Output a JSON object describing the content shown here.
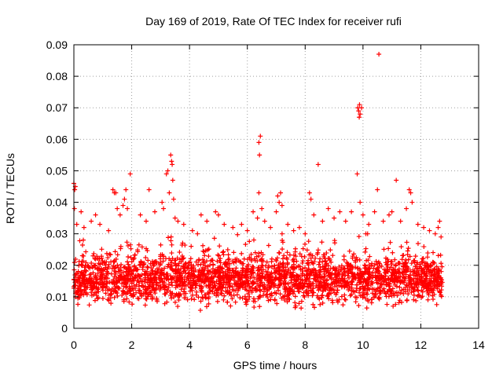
{
  "chart_data": {
    "type": "scatter",
    "title": "Day 169 of 2019, Rate Of TEC Index for receiver rufi",
    "xlabel": "GPS time / hours",
    "ylabel": "ROTI / TECUs",
    "xlim": [
      0,
      14
    ],
    "ylim": [
      0,
      0.09
    ],
    "xticks": [
      0,
      2,
      4,
      6,
      8,
      10,
      12,
      14
    ],
    "xtick_labels": [
      "0",
      "2",
      "4",
      "6",
      "8",
      "10",
      "12",
      "14"
    ],
    "yticks": [
      0,
      0.01,
      0.02,
      0.03,
      0.04,
      0.05,
      0.06,
      0.07,
      0.08,
      0.09
    ],
    "ytick_labels": [
      "0",
      "0.01",
      "0.02",
      "0.03",
      "0.04",
      "0.05",
      "0.06",
      "0.07",
      "0.08",
      "0.09"
    ],
    "grid": true,
    "marker": "+",
    "color": "#ff0000",
    "series": [
      {
        "name": "ROTI",
        "points": [
          [
            0.0,
            0.046
          ],
          [
            0.03,
            0.044
          ],
          [
            0.05,
            0.045
          ],
          [
            0.02,
            0.038
          ],
          [
            0.1,
            0.033
          ],
          [
            0.25,
            0.037
          ],
          [
            0.35,
            0.032
          ],
          [
            0.6,
            0.034
          ],
          [
            0.75,
            0.036
          ],
          [
            0.9,
            0.033
          ],
          [
            1.2,
            0.031
          ],
          [
            1.35,
            0.044
          ],
          [
            1.4,
            0.043
          ],
          [
            1.45,
            0.043
          ],
          [
            1.5,
            0.038
          ],
          [
            1.6,
            0.036
          ],
          [
            1.7,
            0.039
          ],
          [
            1.75,
            0.041
          ],
          [
            1.8,
            0.044
          ],
          [
            1.85,
            0.038
          ],
          [
            1.95,
            0.049
          ],
          [
            2.3,
            0.036
          ],
          [
            2.5,
            0.034
          ],
          [
            2.6,
            0.044
          ],
          [
            2.8,
            0.037
          ],
          [
            3.05,
            0.04
          ],
          [
            3.1,
            0.038
          ],
          [
            3.2,
            0.049
          ],
          [
            3.25,
            0.05
          ],
          [
            3.3,
            0.043
          ],
          [
            3.35,
            0.055
          ],
          [
            3.38,
            0.053
          ],
          [
            3.4,
            0.052
          ],
          [
            3.42,
            0.047
          ],
          [
            3.45,
            0.041
          ],
          [
            3.5,
            0.035
          ],
          [
            3.6,
            0.034
          ],
          [
            3.8,
            0.033
          ],
          [
            4.1,
            0.031
          ],
          [
            4.4,
            0.036
          ],
          [
            4.6,
            0.034
          ],
          [
            4.9,
            0.037
          ],
          [
            5.0,
            0.036
          ],
          [
            5.2,
            0.033
          ],
          [
            5.5,
            0.032
          ],
          [
            5.8,
            0.033
          ],
          [
            6.0,
            0.031
          ],
          [
            6.2,
            0.037
          ],
          [
            6.35,
            0.035
          ],
          [
            6.4,
            0.059
          ],
          [
            6.45,
            0.061
          ],
          [
            6.42,
            0.055
          ],
          [
            6.4,
            0.043
          ],
          [
            6.5,
            0.038
          ],
          [
            6.6,
            0.034
          ],
          [
            6.8,
            0.032
          ],
          [
            7.0,
            0.037
          ],
          [
            7.05,
            0.042
          ],
          [
            7.1,
            0.04
          ],
          [
            7.15,
            0.043
          ],
          [
            7.2,
            0.039
          ],
          [
            7.4,
            0.033
          ],
          [
            7.6,
            0.031
          ],
          [
            7.8,
            0.032
          ],
          [
            8.0,
            0.03
          ],
          [
            8.15,
            0.043
          ],
          [
            8.2,
            0.041
          ],
          [
            8.3,
            0.036
          ],
          [
            8.45,
            0.052
          ],
          [
            8.6,
            0.034
          ],
          [
            8.8,
            0.038
          ],
          [
            9.0,
            0.035
          ],
          [
            9.2,
            0.037
          ],
          [
            9.4,
            0.034
          ],
          [
            9.6,
            0.037
          ],
          [
            9.8,
            0.049
          ],
          [
            9.82,
            0.07
          ],
          [
            9.85,
            0.069
          ],
          [
            9.88,
            0.071
          ],
          [
            9.9,
            0.068
          ],
          [
            9.95,
            0.07
          ],
          [
            9.87,
            0.067
          ],
          [
            9.9,
            0.04
          ],
          [
            10.0,
            0.036
          ],
          [
            10.2,
            0.033
          ],
          [
            10.4,
            0.037
          ],
          [
            10.55,
            0.087
          ],
          [
            10.5,
            0.044
          ],
          [
            10.7,
            0.034
          ],
          [
            10.9,
            0.036
          ],
          [
            11.0,
            0.037
          ],
          [
            11.15,
            0.047
          ],
          [
            11.3,
            0.034
          ],
          [
            11.5,
            0.038
          ],
          [
            11.6,
            0.044
          ],
          [
            11.65,
            0.043
          ],
          [
            11.7,
            0.04
          ],
          [
            11.9,
            0.033
          ],
          [
            12.1,
            0.032
          ],
          [
            12.3,
            0.031
          ],
          [
            12.5,
            0.03
          ],
          [
            12.6,
            0.032
          ],
          [
            12.65,
            0.034
          ],
          [
            12.7,
            0.029
          ]
        ]
      }
    ],
    "dense_band": {
      "x_range": [
        0,
        12.75
      ],
      "y_range": [
        0.004,
        0.03
      ],
      "y_typical": [
        0.008,
        0.022
      ],
      "count": 2600
    }
  }
}
